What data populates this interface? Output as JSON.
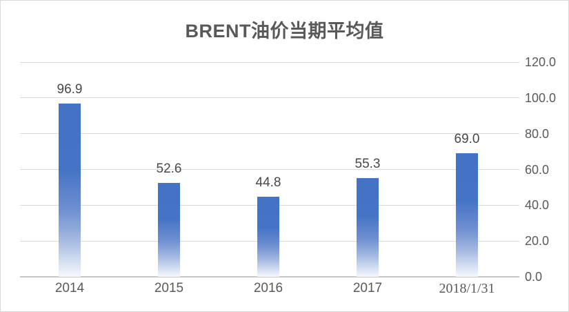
{
  "title": "BRENT油价当期平均值",
  "colors": {
    "bar_blue": "#4472C4",
    "bar_fade_bottom": "#F6F8FD",
    "gridline": "#D9D9D9",
    "axis_line": "#C6C6C6",
    "title_text": "#595959",
    "axis_text": "#595959",
    "data_label_text": "#474747",
    "frame_border": "#D9D9D9",
    "background": "#FFFFFF"
  },
  "chart_data": {
    "type": "bar",
    "title": "BRENT油价当期平均值",
    "categories": [
      "2014",
      "2015",
      "2016",
      "2017",
      "2018/1/31"
    ],
    "values": [
      96.9,
      52.6,
      44.8,
      55.3,
      69.0
    ],
    "data_labels": [
      "96.9",
      "52.6",
      "44.8",
      "55.3",
      "69.0"
    ],
    "xlabel": "",
    "ylabel": "",
    "ylim": [
      0,
      120
    ],
    "ytick_interval": 20,
    "ytick_labels": [
      "120.0",
      "100.0",
      "80.0",
      "60.0",
      "40.0",
      "20.0",
      "0.0"
    ],
    "value_axis_side": "right",
    "grid": true,
    "legend": "none",
    "bar_fill": "gradient blue fading to white at base"
  }
}
